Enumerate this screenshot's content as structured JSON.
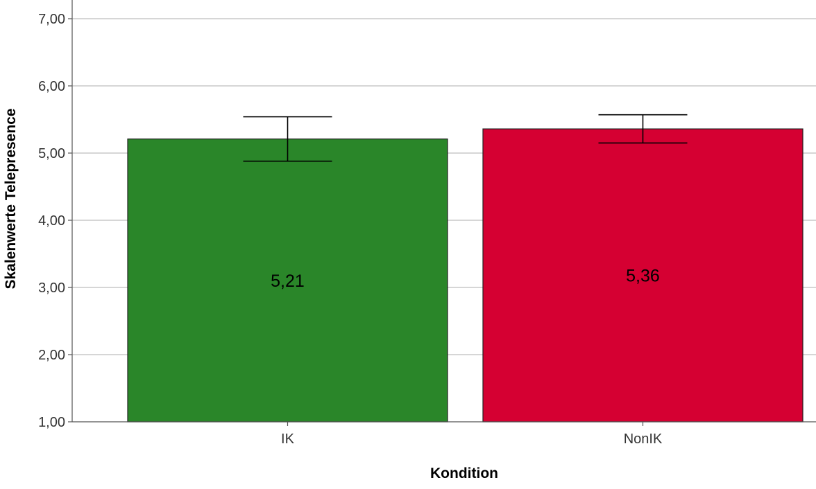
{
  "chart_data": {
    "type": "bar",
    "title": "",
    "xlabel": "Kondition",
    "ylabel": "Skalenwerte Telepresence",
    "categories": [
      "IK",
      "NonIK"
    ],
    "values": [
      5.21,
      5.36
    ],
    "value_labels": [
      "5,21",
      "5,36"
    ],
    "error_bars": [
      {
        "low": 4.88,
        "high": 5.54
      },
      {
        "low": 5.15,
        "high": 5.57
      }
    ],
    "colors": [
      "#2a8629",
      "#d50032"
    ],
    "ylim": [
      1,
      7.3
    ],
    "yticks": [
      1,
      2,
      3,
      4,
      5,
      6,
      7
    ],
    "ytick_labels": [
      "1,00",
      "2,00",
      "3,00",
      "4,00",
      "5,00",
      "6,00",
      "7,00"
    ],
    "grid": true,
    "legend": "none"
  }
}
